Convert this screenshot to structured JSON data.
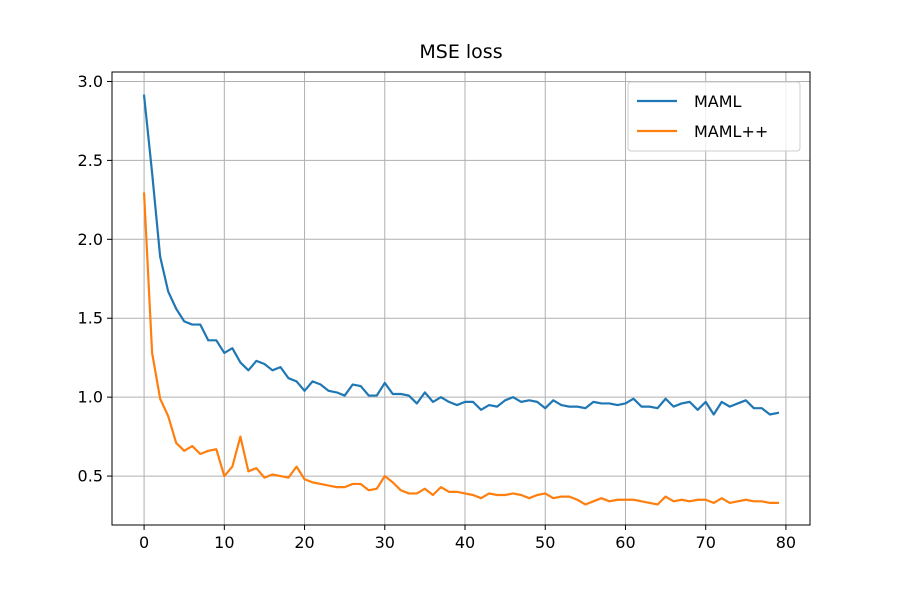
{
  "chart_data": {
    "type": "line",
    "title": "MSE loss",
    "xlabel": "",
    "ylabel": "",
    "xlim": [
      -4,
      83
    ],
    "ylim": [
      0.19,
      3.06
    ],
    "xticks": [
      0,
      10,
      20,
      30,
      40,
      50,
      60,
      70,
      80
    ],
    "yticks": [
      0.5,
      1.0,
      1.5,
      2.0,
      2.5,
      3.0
    ],
    "xtick_labels": [
      "0",
      "10",
      "20",
      "30",
      "40",
      "50",
      "60",
      "70",
      "80"
    ],
    "ytick_labels": [
      "0.5",
      "1.0",
      "1.5",
      "2.0",
      "2.5",
      "3.0"
    ],
    "grid": true,
    "legend_position": "top-right",
    "series": [
      {
        "name": "MAML",
        "color": "#1f77b4",
        "values": [
          2.91,
          2.42,
          1.89,
          1.67,
          1.56,
          1.48,
          1.46,
          1.46,
          1.36,
          1.36,
          1.28,
          1.31,
          1.22,
          1.17,
          1.23,
          1.21,
          1.17,
          1.19,
          1.12,
          1.1,
          1.04,
          1.1,
          1.08,
          1.04,
          1.03,
          1.01,
          1.08,
          1.07,
          1.01,
          1.01,
          1.09,
          1.02,
          1.02,
          1.01,
          0.96,
          1.03,
          0.97,
          1.0,
          0.97,
          0.95,
          0.97,
          0.97,
          0.92,
          0.95,
          0.94,
          0.98,
          1.0,
          0.97,
          0.98,
          0.97,
          0.93,
          0.98,
          0.95,
          0.94,
          0.94,
          0.93,
          0.97,
          0.96,
          0.96,
          0.95,
          0.96,
          0.99,
          0.94,
          0.94,
          0.93,
          0.99,
          0.94,
          0.96,
          0.97,
          0.92,
          0.97,
          0.89,
          0.97,
          0.94,
          0.96,
          0.98,
          0.93,
          0.93,
          0.89,
          0.9
        ]
      },
      {
        "name": "MAML++",
        "color": "#ff7f0e",
        "values": [
          2.29,
          1.28,
          0.99,
          0.88,
          0.71,
          0.66,
          0.69,
          0.64,
          0.66,
          0.67,
          0.5,
          0.56,
          0.75,
          0.53,
          0.55,
          0.49,
          0.51,
          0.5,
          0.49,
          0.56,
          0.48,
          0.46,
          0.45,
          0.44,
          0.43,
          0.43,
          0.45,
          0.45,
          0.41,
          0.42,
          0.5,
          0.46,
          0.41,
          0.39,
          0.39,
          0.42,
          0.38,
          0.43,
          0.4,
          0.4,
          0.39,
          0.38,
          0.36,
          0.39,
          0.38,
          0.38,
          0.39,
          0.38,
          0.36,
          0.38,
          0.39,
          0.36,
          0.37,
          0.37,
          0.35,
          0.32,
          0.34,
          0.36,
          0.34,
          0.35,
          0.35,
          0.35,
          0.34,
          0.33,
          0.32,
          0.37,
          0.34,
          0.35,
          0.34,
          0.35,
          0.35,
          0.33,
          0.36,
          0.33,
          0.34,
          0.35,
          0.34,
          0.34,
          0.33,
          0.33
        ]
      }
    ]
  }
}
